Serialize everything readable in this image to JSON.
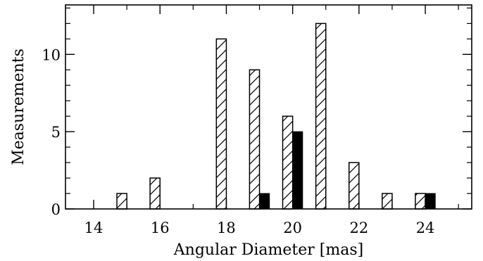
{
  "chart_data": {
    "type": "bar",
    "xlabel": "Angular Diameter [mas]",
    "ylabel": "Measurements",
    "xlim": [
      13.15,
      25.4
    ],
    "ylim": [
      0,
      13.2
    ],
    "x_ticks": [
      14,
      16,
      18,
      20,
      22,
      24
    ],
    "y_ticks": [
      0,
      5,
      10
    ],
    "grid": false,
    "legend": "none",
    "bar_width": 0.3,
    "series": [
      {
        "style": "hatched",
        "color": "#ffffff",
        "x": [
          14.85,
          15.85,
          17.85,
          18.85,
          19.85,
          20.85,
          21.85,
          22.85,
          23.85
        ],
        "values": [
          1,
          2,
          11,
          9,
          6,
          12,
          3,
          1,
          1
        ]
      },
      {
        "style": "solid",
        "color": "#000000",
        "x": [
          19.15,
          20.15,
          24.15
        ],
        "values": [
          1,
          5,
          1
        ]
      }
    ]
  }
}
